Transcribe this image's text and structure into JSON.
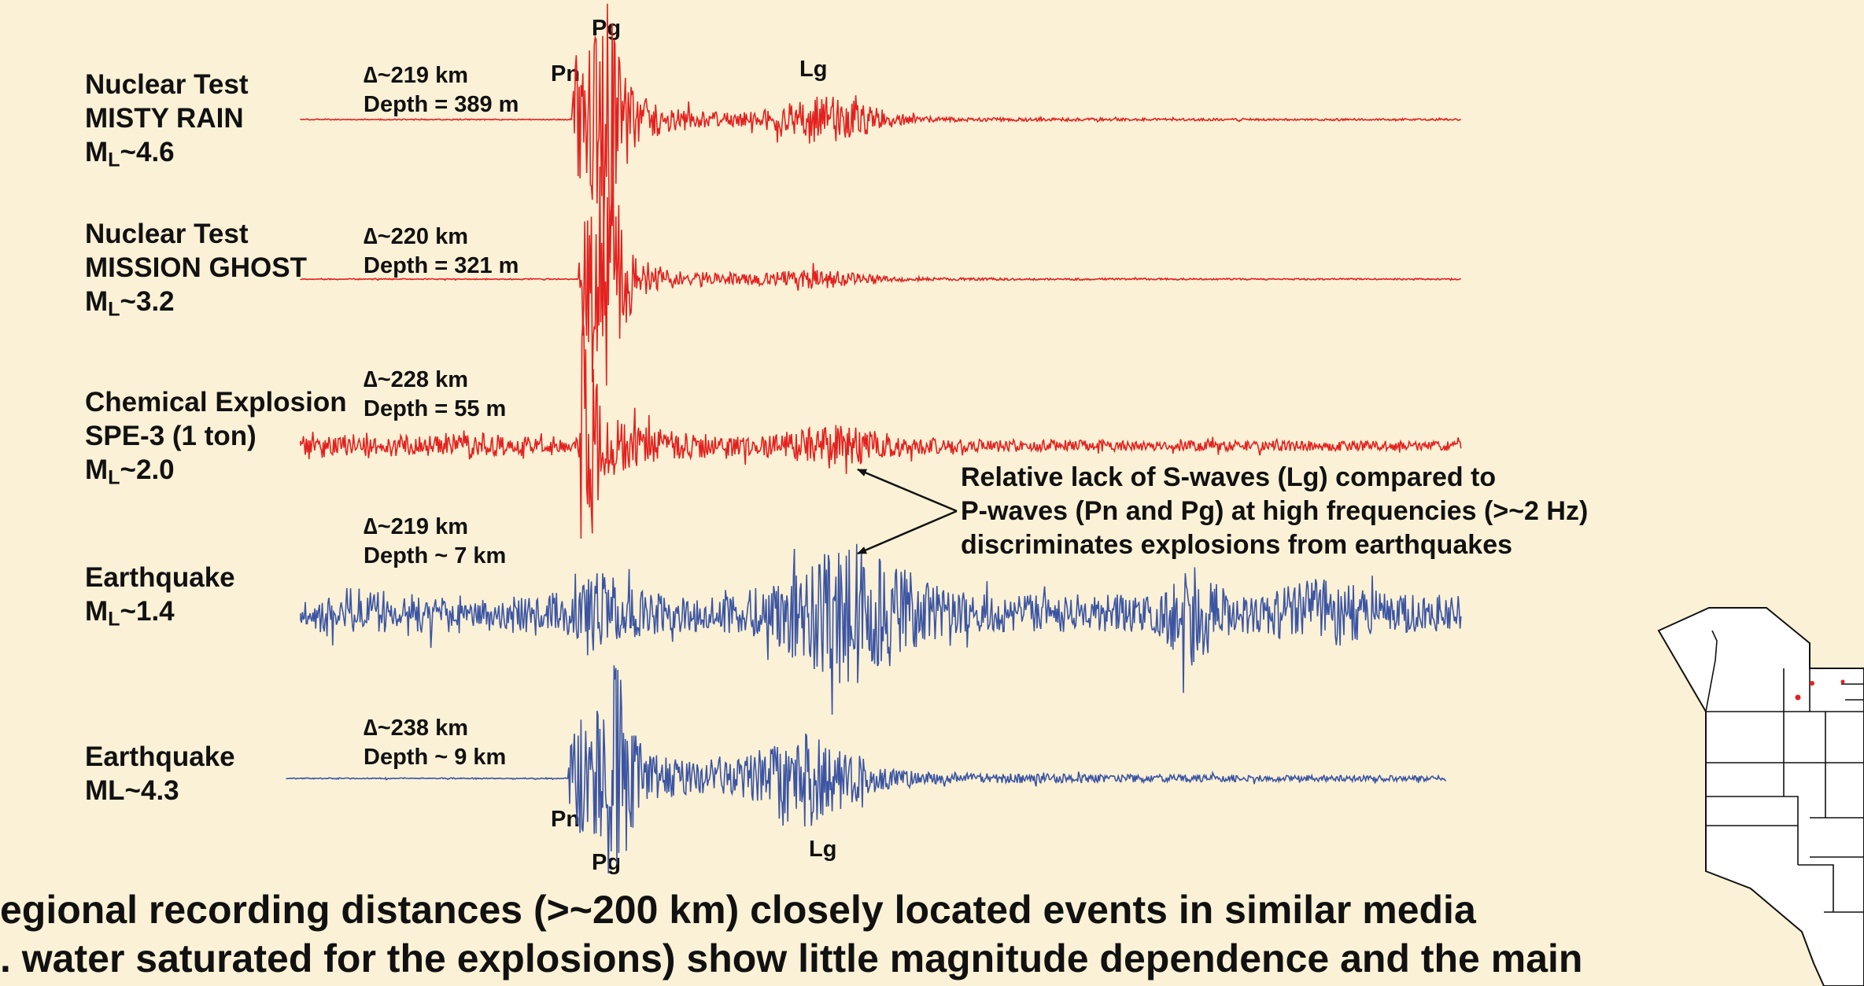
{
  "events": [
    {
      "name": "Nuclear Test",
      "sub_name": "MISTY RAIN",
      "mag_prefix": "M",
      "mag_sub": "L",
      "mag_suffix": "~4.6",
      "delta": "∆~219 km",
      "depth": "Depth = 389 m",
      "color": "#e3211f"
    },
    {
      "name": "Nuclear Test",
      "sub_name": "MISSION GHOST",
      "mag_prefix": "M",
      "mag_sub": "L",
      "mag_suffix": "~3.2",
      "delta": "∆~220 km",
      "depth": "Depth = 321 m",
      "color": "#e3211f"
    },
    {
      "name": "Chemical Explosion",
      "sub_name": "SPE-3 (1 ton)",
      "mag_prefix": "M",
      "mag_sub": "L",
      "mag_suffix": "~2.0",
      "delta": "∆~228 km",
      "depth": "Depth = 55 m",
      "color": "#e3211f"
    },
    {
      "name": "Earthquake",
      "mag_prefix": "M",
      "mag_sub": "L",
      "mag_suffix": "~1.4",
      "delta": "∆~219 km",
      "depth": "Depth ~ 7 km",
      "color": "#3b55a3"
    },
    {
      "name": "Earthquake",
      "mag_text": "ML~4.3",
      "delta": "∆~238 km",
      "depth": "Depth ~ 9 km",
      "color": "#3b55a3"
    }
  ],
  "phases": {
    "pn": "Pn",
    "pg": "Pg",
    "lg": "Lg"
  },
  "annotation": {
    "line1": "Relative lack of S-waves (Lg) compared to",
    "line2": "P-waves (Pn and Pg) at high frequencies (>~2 Hz)",
    "line3": "discriminates explosions from earthquakes"
  },
  "bottom_text": {
    "line1": "egional recording distances (>~200 km) closely located events in similar media",
    "line2": ". water saturated for the explosions) show little magnitude dependence and the main"
  },
  "map_icon": "us-states-map-icon"
}
